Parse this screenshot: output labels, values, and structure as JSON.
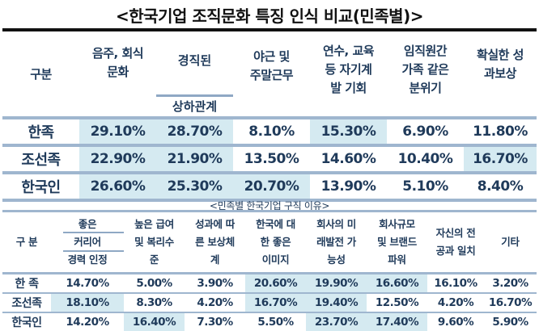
{
  "title": "<한국기업 조직문화 특징 인식 비교(민족별)>",
  "table1": {
    "headers": {
      "category": "구분",
      "c1": [
        "음주, 회식",
        "문화"
      ],
      "c2_top": "경직된",
      "c2_bottom": "상하관계",
      "c3": [
        "야근 및",
        "주말근무"
      ],
      "c4": [
        "연수, 교육",
        "등 자기계",
        "발 기회"
      ],
      "c5": [
        "임직원간",
        "가족 같은",
        "분위기"
      ],
      "c6": [
        "확실한 성",
        "과보상"
      ]
    },
    "rows": [
      {
        "label": "한족",
        "values": [
          "29.10%",
          "28.70%",
          "8.10%",
          "15.30%",
          "6.90%",
          "11.80%"
        ],
        "highlight": [
          1,
          1,
          0,
          1,
          0,
          0
        ]
      },
      {
        "label": "조선족",
        "values": [
          "22.90%",
          "21.90%",
          "13.50%",
          "14.60%",
          "10.40%",
          "16.70%"
        ],
        "highlight": [
          1,
          1,
          0,
          0,
          0,
          1
        ]
      },
      {
        "label": "한국인",
        "values": [
          "26.60%",
          "25.30%",
          "20.70%",
          "13.90%",
          "5.10%",
          "8.40%"
        ],
        "highlight": [
          1,
          1,
          1,
          0,
          0,
          0
        ]
      }
    ]
  },
  "subtitle": "<민족별 한국기업 구직 이유>",
  "table2": {
    "headers": {
      "category": "구 분",
      "c1": [
        "좋은",
        "커리어",
        "경력 인정"
      ],
      "c2": [
        "높은 급여",
        "및 복리수",
        "준"
      ],
      "c3": [
        "성과에 따",
        "른 보상체",
        "계"
      ],
      "c4": [
        "한국에 대",
        "한 좋은",
        "이미지"
      ],
      "c5": [
        "회사의 미",
        "래발전 가",
        "능성"
      ],
      "c6": [
        "회사규모",
        "및 브랜드",
        "파워"
      ],
      "c7": [
        "자신의 전",
        "공과 일치"
      ],
      "c8": [
        "기타"
      ]
    },
    "rows": [
      {
        "label": "한 족",
        "values": [
          "14.70%",
          "5.00%",
          "3.90%",
          "20.60%",
          "19.90%",
          "16.60%",
          "16.10%",
          "3.20%"
        ],
        "highlight": [
          0,
          0,
          0,
          1,
          1,
          1,
          0,
          0
        ]
      },
      {
        "label": "조선족",
        "values": [
          "18.10%",
          "8.30%",
          "4.20%",
          "16.70%",
          "19.40%",
          "12.50%",
          "4.20%",
          "16.70%"
        ],
        "highlight": [
          1,
          0,
          0,
          1,
          1,
          0,
          0,
          0
        ]
      },
      {
        "label": "한국인",
        "values": [
          "14.20%",
          "16.40%",
          "7.30%",
          "5.50%",
          "23.70%",
          "17.40%",
          "9.60%",
          "5.90%"
        ],
        "highlight": [
          0,
          1,
          0,
          0,
          1,
          1,
          0,
          0
        ]
      }
    ]
  },
  "colors": {
    "text": "#1f3a5a",
    "highlight": "#d5eaf1",
    "rule": "#9fb6cf",
    "title_rule": "#111111"
  }
}
